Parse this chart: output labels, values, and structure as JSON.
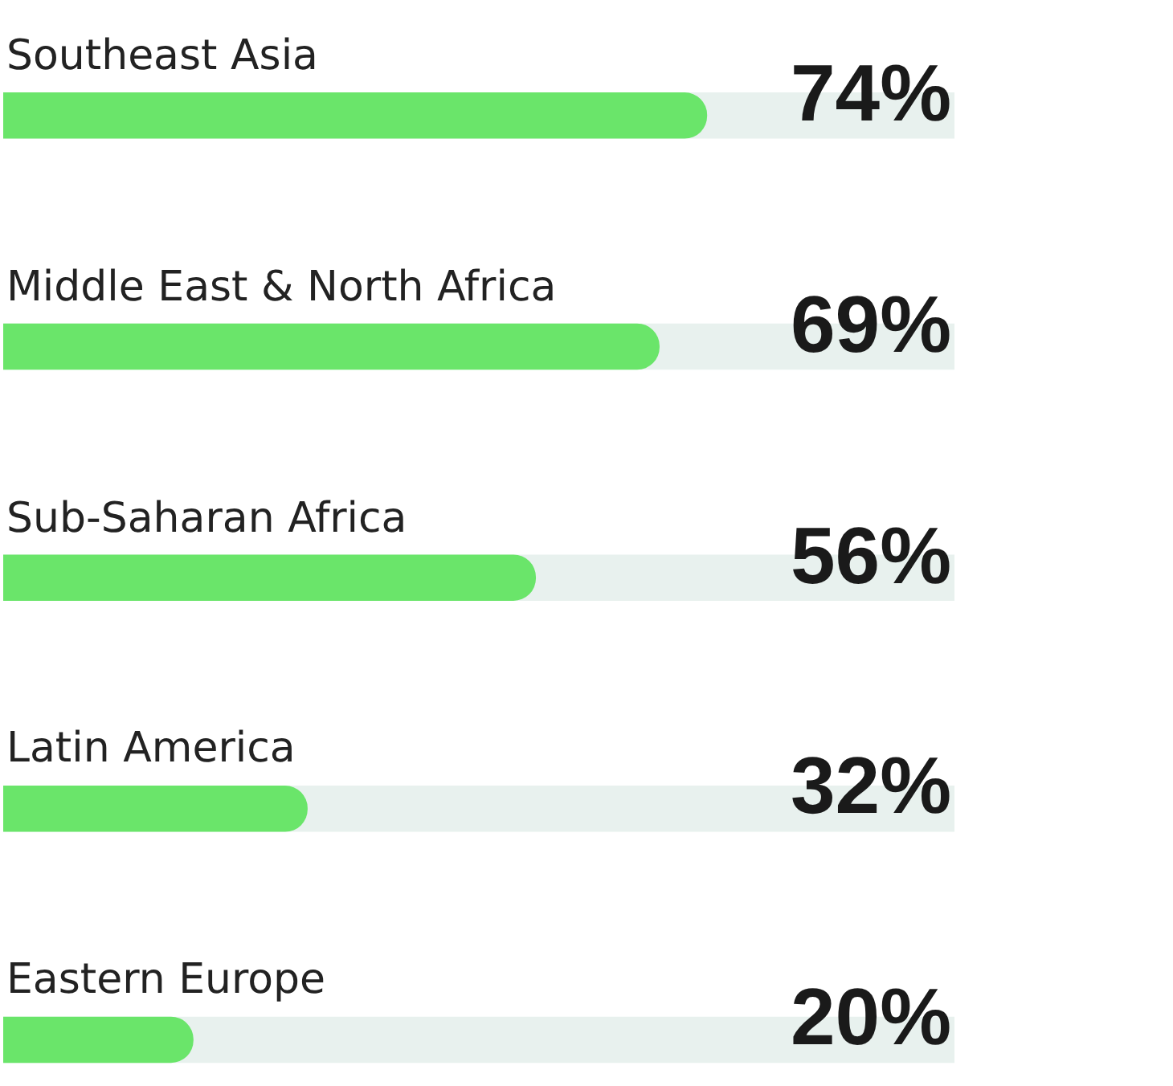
{
  "chart_data": {
    "type": "bar",
    "orientation": "horizontal",
    "categories": [
      "Southeast Asia",
      "Middle East & North Africa",
      "Sub-Saharan Africa",
      "Latin America",
      "Eastern Europe"
    ],
    "values": [
      74,
      69,
      56,
      32,
      20
    ],
    "value_labels": [
      "74%",
      "69%",
      "56%",
      "32%",
      "20%"
    ],
    "color": "#6ae56a",
    "xlim": [
      0,
      100
    ],
    "grid": false,
    "legend": false,
    "tick_labels": false
  }
}
